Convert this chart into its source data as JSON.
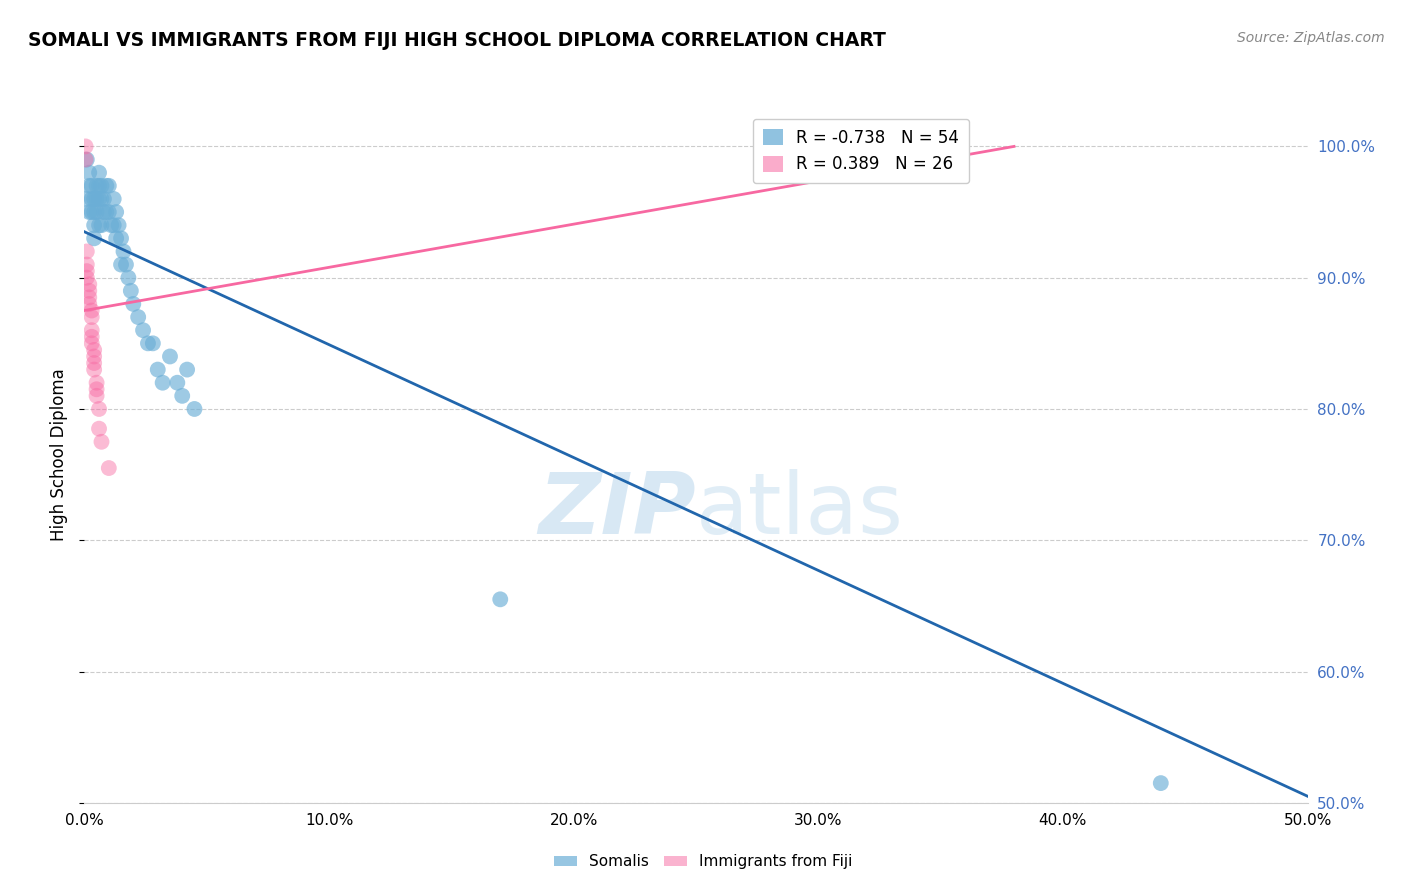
{
  "title": "SOMALI VS IMMIGRANTS FROM FIJI HIGH SCHOOL DIPLOMA CORRELATION CHART",
  "source": "Source: ZipAtlas.com",
  "ylabel": "High School Diploma",
  "x_ticks": [
    0.0,
    0.1,
    0.2,
    0.3,
    0.4,
    0.5
  ],
  "x_tick_labels": [
    "0.0%",
    "10.0%",
    "20.0%",
    "30.0%",
    "40.0%",
    "50.0%"
  ],
  "y_ticks_right": [
    0.5,
    0.6,
    0.7,
    0.8,
    0.9,
    1.0
  ],
  "y_tick_labels_right": [
    "50.0%",
    "60.0%",
    "70.0%",
    "80.0%",
    "90.0%",
    "100.0%"
  ],
  "xlim": [
    0.0,
    0.5
  ],
  "ylim": [
    0.5,
    1.03
  ],
  "legend_R_blue": "-0.738",
  "legend_N_blue": "54",
  "legend_R_pink": " 0.389",
  "legend_N_pink": "26",
  "blue_color": "#6baed6",
  "pink_color": "#f768a1",
  "blue_line_color": "#2166ac",
  "pink_line_color": "#f768a1",
  "watermark_zip": "ZIP",
  "watermark_atlas": "atlas",
  "blue_line_x": [
    0.0,
    0.5
  ],
  "blue_line_y": [
    0.935,
    0.505
  ],
  "pink_line_x": [
    0.0,
    0.38
  ],
  "pink_line_y": [
    0.875,
    1.0
  ],
  "somali_x": [
    0.001,
    0.001,
    0.002,
    0.002,
    0.002,
    0.003,
    0.003,
    0.003,
    0.004,
    0.004,
    0.004,
    0.004,
    0.005,
    0.005,
    0.005,
    0.006,
    0.006,
    0.006,
    0.006,
    0.007,
    0.007,
    0.007,
    0.008,
    0.008,
    0.009,
    0.009,
    0.01,
    0.01,
    0.011,
    0.012,
    0.012,
    0.013,
    0.013,
    0.014,
    0.015,
    0.015,
    0.016,
    0.017,
    0.018,
    0.019,
    0.02,
    0.022,
    0.024,
    0.026,
    0.028,
    0.03,
    0.032,
    0.035,
    0.038,
    0.04,
    0.042,
    0.045,
    0.17,
    0.44
  ],
  "somali_y": [
    0.99,
    0.96,
    0.98,
    0.95,
    0.97,
    0.97,
    0.96,
    0.95,
    0.96,
    0.95,
    0.94,
    0.93,
    0.97,
    0.96,
    0.95,
    0.98,
    0.97,
    0.96,
    0.94,
    0.97,
    0.96,
    0.94,
    0.96,
    0.95,
    0.97,
    0.95,
    0.97,
    0.95,
    0.94,
    0.96,
    0.94,
    0.95,
    0.93,
    0.94,
    0.93,
    0.91,
    0.92,
    0.91,
    0.9,
    0.89,
    0.88,
    0.87,
    0.86,
    0.85,
    0.85,
    0.83,
    0.82,
    0.84,
    0.82,
    0.81,
    0.83,
    0.8,
    0.655,
    0.515
  ],
  "fiji_x": [
    0.0005,
    0.0005,
    0.001,
    0.001,
    0.001,
    0.001,
    0.002,
    0.002,
    0.002,
    0.002,
    0.003,
    0.003,
    0.003,
    0.003,
    0.003,
    0.004,
    0.004,
    0.004,
    0.004,
    0.005,
    0.005,
    0.005,
    0.006,
    0.006,
    0.007,
    0.01
  ],
  "fiji_y": [
    1.0,
    0.99,
    0.92,
    0.91,
    0.905,
    0.9,
    0.895,
    0.89,
    0.885,
    0.88,
    0.875,
    0.87,
    0.86,
    0.855,
    0.85,
    0.845,
    0.84,
    0.835,
    0.83,
    0.82,
    0.815,
    0.81,
    0.8,
    0.785,
    0.775,
    0.755
  ]
}
